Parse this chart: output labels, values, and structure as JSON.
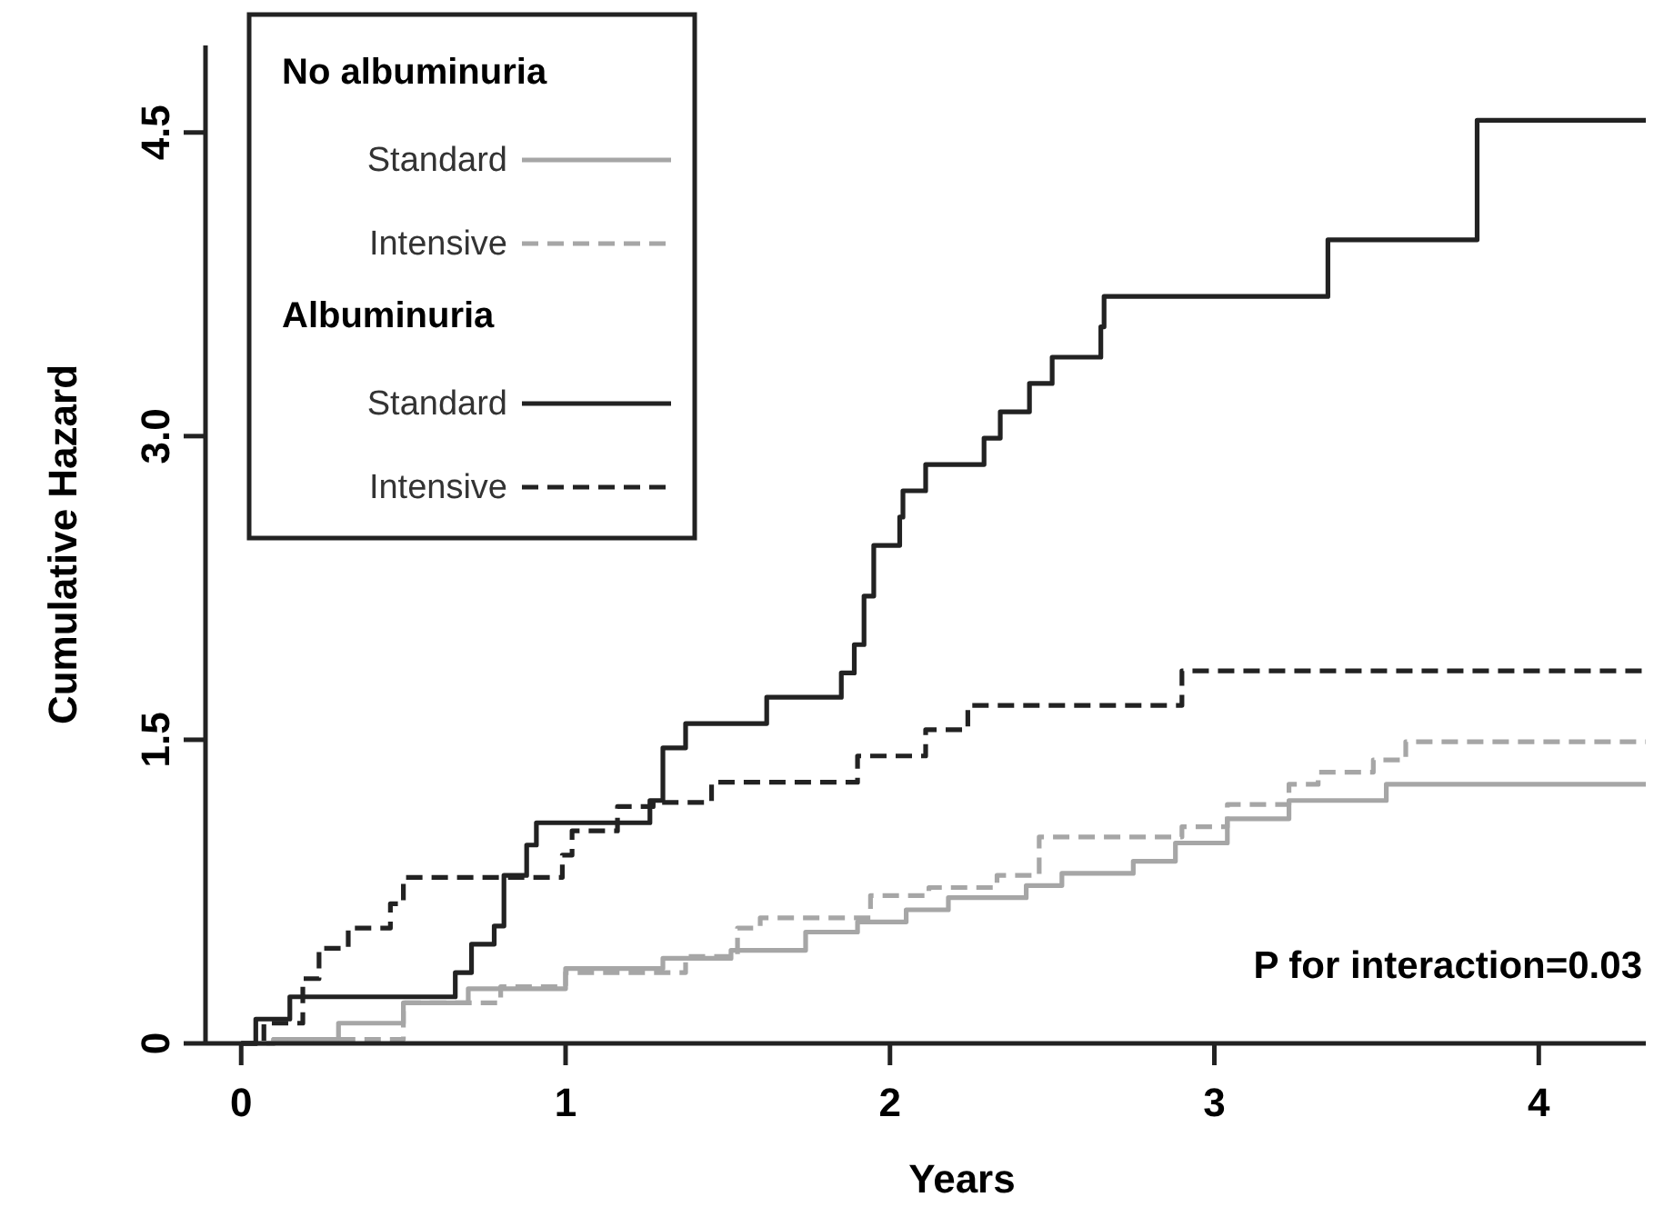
{
  "chart_data": {
    "type": "step",
    "xlabel": "Years",
    "ylabel": "Cumulative Hazard",
    "xlim": [
      -0.11,
      4.33
    ],
    "ylim": [
      0,
      4.93
    ],
    "xticks": [
      0,
      1,
      2,
      3,
      4
    ],
    "yticks": [
      0,
      {
        "value": 1.5,
        "label": "1.5"
      },
      {
        "value": 3,
        "label": "3.0"
      },
      {
        "value": 4.5,
        "label": "4.5"
      }
    ],
    "legend": "top left",
    "grid": false,
    "annotations": [
      "No albuminuria",
      "Albuminuria",
      "P for interaction=0.03"
    ],
    "series": [
      {
        "name": "Standard",
        "color": "#a6a6a6",
        "line_style": "solid",
        "x": [
          0,
          0.1,
          0.3,
          0.5,
          0.7,
          1.0,
          1.3,
          1.51,
          1.74,
          1.9,
          2.05,
          2.18,
          2.42,
          2.53,
          2.75,
          2.88,
          3.04,
          3.23,
          3.53,
          4.33
        ],
        "values": [
          0,
          0.02,
          0.1,
          0.2,
          0.27,
          0.37,
          0.42,
          0.46,
          0.55,
          0.6,
          0.66,
          0.72,
          0.78,
          0.84,
          0.9,
          0.99,
          1.11,
          1.2,
          1.28,
          1.28
        ]
      },
      {
        "name": "Intensive",
        "color": "#a6a6a6",
        "line_style": "dashed",
        "x": [
          0,
          0.1,
          0.5,
          0.8,
          1.0,
          1.37,
          1.53,
          1.6,
          1.94,
          2.12,
          2.33,
          2.46,
          2.9,
          3.04,
          3.23,
          3.32,
          3.49,
          3.59,
          4.33
        ],
        "values": [
          0,
          0.02,
          0.2,
          0.28,
          0.35,
          0.43,
          0.57,
          0.62,
          0.73,
          0.77,
          0.83,
          1.02,
          1.07,
          1.18,
          1.28,
          1.34,
          1.4,
          1.49,
          1.49
        ]
      },
      {
        "name": "Standard",
        "color": "#222222",
        "line_style": "solid",
        "x": [
          0,
          0.045,
          0.15,
          0.66,
          0.71,
          0.78,
          0.81,
          0.88,
          0.91,
          1.26,
          1.3,
          1.37,
          1.62,
          1.85,
          1.89,
          1.92,
          1.95,
          2.03,
          2.04,
          2.11,
          2.29,
          2.34,
          2.43,
          2.5,
          2.65,
          2.66,
          3.35,
          3.81,
          4.33
        ],
        "values": [
          0,
          0.12,
          0.23,
          0.35,
          0.49,
          0.58,
          0.83,
          0.98,
          1.09,
          1.2,
          1.46,
          1.58,
          1.71,
          1.83,
          1.97,
          2.21,
          2.46,
          2.6,
          2.73,
          2.86,
          2.99,
          3.12,
          3.26,
          3.39,
          3.54,
          3.69,
          3.97,
          4.56,
          4.56
        ]
      },
      {
        "name": "Intensive",
        "color": "#222222",
        "line_style": "dashed",
        "x": [
          0,
          0.07,
          0.19,
          0.24,
          0.33,
          0.46,
          0.5,
          0.99,
          1.02,
          1.16,
          1.27,
          1.45,
          1.9,
          2.11,
          2.24,
          2.9,
          4.33
        ],
        "values": [
          0,
          0.1,
          0.32,
          0.47,
          0.57,
          0.69,
          0.82,
          0.93,
          1.05,
          1.17,
          1.19,
          1.29,
          1.42,
          1.55,
          1.67,
          1.84,
          1.84
        ]
      }
    ]
  }
}
